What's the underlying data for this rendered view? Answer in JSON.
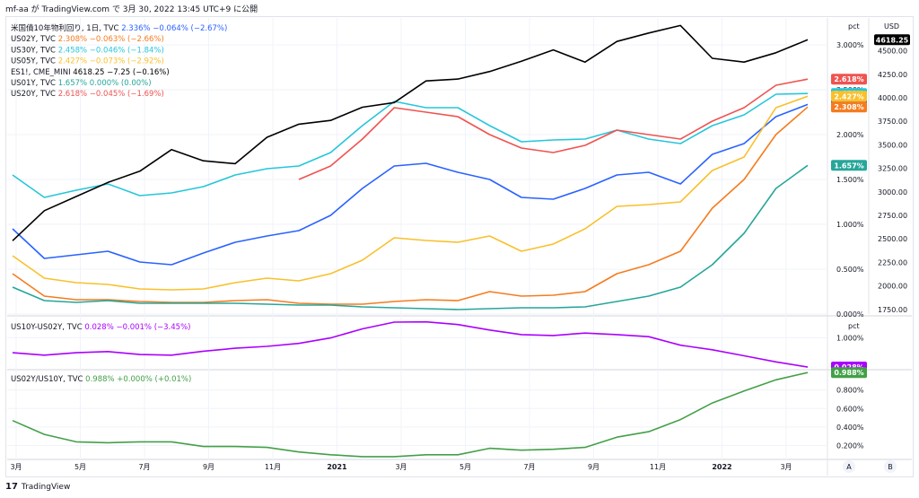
{
  "header": {
    "title": "mf-aa が TradingView.com で 3月 30, 2022 13:45 UTC+9 に公開"
  },
  "footer": {
    "brand": "TradingView",
    "logo": "tradingview-logo-icon"
  },
  "colors": {
    "us10y": "#2962ff",
    "us02y": "#f57c1f",
    "us30y": "#26c6da",
    "us05y": "#f9c02c",
    "es": "#000000",
    "us01y": "#26a69a",
    "us20y": "#ef5350",
    "spread": "#aa00ff",
    "ratio": "#43a047",
    "grid": "#f0f3fa",
    "text": "#131722"
  },
  "main_legend": [
    {
      "label": "米国債10年物利回り, 1日, TVC",
      "values": "2.336%  −0.064%  (−2.67%)",
      "color": "#2962ff"
    },
    {
      "label": "US02Y, TVC",
      "values": "2.308%  −0.063%  (−2.66%)",
      "color": "#f57c1f"
    },
    {
      "label": "US30Y, TVC",
      "values": "2.458%  −0.046%  (−1.84%)",
      "color": "#26c6da"
    },
    {
      "label": "US05Y, TVC",
      "values": "2.427%  −0.073%  (−2.92%)",
      "color": "#f9c02c"
    },
    {
      "label": "ES1!, CME_MINI",
      "values": "4618.25  −7.25  (−0.16%)",
      "color": "#000000"
    },
    {
      "label": "US01Y, TVC",
      "values": "1.657%  0.000%  (0.00%)",
      "color": "#26a69a"
    },
    {
      "label": "US20Y, TVC",
      "values": "2.618%  −0.045%  (−1.69%)",
      "color": "#ef5350"
    }
  ],
  "pane2_legend": {
    "label": "US10Y-US02Y, TVC",
    "values": "0.028%  −0.001%  (−3.45%)",
    "color": "#aa00ff"
  },
  "pane3_legend": {
    "label": "US02Y/US10Y, TVC",
    "values": "0.988%  +0.000%  (+0.01%)",
    "color": "#43a047"
  },
  "x_axis": {
    "ticks": [
      "3月",
      "5月",
      "7月",
      "9月",
      "11月",
      "2021",
      "3月",
      "5月",
      "7月",
      "9月",
      "11月",
      "2022",
      "3月"
    ]
  },
  "axis_badges": {
    "pct_unit": "pct",
    "usd_unit": "USD",
    "button_a": "A",
    "button_b": "B"
  },
  "chart_data": [
    {
      "type": "line",
      "pane": "main",
      "x": [
        "2020-03",
        "2020-04",
        "2020-05",
        "2020-06",
        "2020-07",
        "2020-08",
        "2020-09",
        "2020-10",
        "2020-11",
        "2020-12",
        "2021-01",
        "2021-02",
        "2021-03",
        "2021-04",
        "2021-05",
        "2021-06",
        "2021-07",
        "2021-08",
        "2021-09",
        "2021-10",
        "2021-11",
        "2021-12",
        "2022-01",
        "2022-02",
        "2022-03",
        "2022-03-30"
      ],
      "left_axis": {
        "unit": "pct",
        "ticks": [
          "0.000%",
          "0.500%",
          "1.000%",
          "1.500%",
          "2.000%",
          "2.500%",
          "3.000%"
        ],
        "ylim": [
          0,
          3.3
        ]
      },
      "right_axis": {
        "unit": "USD",
        "ticks": [
          "1750.00",
          "2000.00",
          "2250.00",
          "2500.00",
          "2750.00",
          "3000.00",
          "3250.00",
          "3500.00",
          "3750.00",
          "4000.00",
          "4250.00",
          "4500.00"
        ],
        "ylim": [
          1700,
          4850
        ]
      },
      "series": [
        {
          "name": "米国債10年物利回り, 1日, TVC",
          "axis": "left",
          "last": "2.336%",
          "values": [
            0.95,
            0.62,
            0.66,
            0.7,
            0.58,
            0.55,
            0.68,
            0.8,
            0.87,
            0.93,
            1.1,
            1.4,
            1.65,
            1.68,
            1.58,
            1.5,
            1.3,
            1.28,
            1.4,
            1.55,
            1.58,
            1.45,
            1.78,
            1.9,
            2.2,
            2.336
          ]
        },
        {
          "name": "US02Y, TVC",
          "axis": "left",
          "last": "2.308%",
          "values": [
            0.45,
            0.2,
            0.16,
            0.16,
            0.14,
            0.13,
            0.13,
            0.15,
            0.16,
            0.12,
            0.11,
            0.11,
            0.14,
            0.16,
            0.15,
            0.25,
            0.2,
            0.21,
            0.25,
            0.45,
            0.55,
            0.7,
            1.18,
            1.5,
            2.0,
            2.308
          ]
        },
        {
          "name": "US30Y, TVC",
          "axis": "left",
          "last": "2.458%",
          "values": [
            1.55,
            1.3,
            1.38,
            1.45,
            1.32,
            1.35,
            1.42,
            1.55,
            1.62,
            1.65,
            1.8,
            2.1,
            2.37,
            2.3,
            2.3,
            2.1,
            1.92,
            1.94,
            1.95,
            2.05,
            1.95,
            1.9,
            2.1,
            2.22,
            2.45,
            2.458
          ]
        },
        {
          "name": "US05Y, TVC",
          "axis": "left",
          "last": "2.427%",
          "values": [
            0.65,
            0.4,
            0.35,
            0.33,
            0.28,
            0.27,
            0.28,
            0.35,
            0.4,
            0.37,
            0.45,
            0.6,
            0.85,
            0.82,
            0.8,
            0.87,
            0.7,
            0.78,
            0.95,
            1.2,
            1.22,
            1.25,
            1.6,
            1.75,
            2.3,
            2.427
          ]
        },
        {
          "name": "ES1!, CME_MINI",
          "axis": "right",
          "last": "4618.25",
          "values": [
            2480,
            2800,
            2950,
            3100,
            3220,
            3450,
            3330,
            3300,
            3580,
            3720,
            3760,
            3900,
            3950,
            4180,
            4200,
            4280,
            4390,
            4510,
            4380,
            4600,
            4690,
            4770,
            4420,
            4380,
            4480,
            4618.25
          ]
        },
        {
          "name": "US01Y, TVC",
          "axis": "left",
          "last": "1.657%",
          "values": [
            0.3,
            0.15,
            0.13,
            0.15,
            0.12,
            0.12,
            0.12,
            0.12,
            0.11,
            0.1,
            0.1,
            0.08,
            0.07,
            0.06,
            0.05,
            0.06,
            0.07,
            0.07,
            0.08,
            0.14,
            0.2,
            0.3,
            0.55,
            0.9,
            1.4,
            1.657
          ]
        },
        {
          "name": "US20Y, TVC",
          "axis": "left",
          "last": "2.618%",
          "values": [
            null,
            null,
            null,
            null,
            null,
            null,
            null,
            null,
            null,
            1.5,
            1.65,
            1.95,
            2.3,
            2.25,
            2.2,
            2.0,
            1.85,
            1.8,
            1.88,
            2.05,
            2.0,
            1.95,
            2.15,
            2.3,
            2.55,
            2.618
          ]
        }
      ]
    },
    {
      "type": "line",
      "pane": "spread",
      "left_axis": {
        "unit": "pct",
        "ticks": [
          "1.000%"
        ],
        "ylim": [
          0,
          1.6
        ]
      },
      "series": [
        {
          "name": "US10Y-US02Y, TVC",
          "last": "0.028%",
          "values": [
            0.5,
            0.42,
            0.5,
            0.54,
            0.44,
            0.42,
            0.55,
            0.65,
            0.71,
            0.81,
            0.99,
            1.29,
            1.51,
            1.52,
            1.43,
            1.25,
            1.1,
            1.07,
            1.15,
            1.1,
            1.03,
            0.75,
            0.6,
            0.4,
            0.2,
            0.028
          ]
        }
      ]
    },
    {
      "type": "line",
      "pane": "ratio",
      "left_axis": {
        "unit": "pct",
        "ticks": [
          "0.200%",
          "0.400%",
          "0.600%",
          "0.800%"
        ],
        "ylim": [
          0.05,
          1.0
        ]
      },
      "series": [
        {
          "name": "US02Y/US10Y, TVC",
          "last": "0.988%",
          "values": [
            0.47,
            0.32,
            0.24,
            0.23,
            0.24,
            0.24,
            0.19,
            0.19,
            0.18,
            0.13,
            0.1,
            0.08,
            0.08,
            0.1,
            0.1,
            0.17,
            0.15,
            0.16,
            0.18,
            0.29,
            0.35,
            0.48,
            0.66,
            0.79,
            0.91,
            0.988
          ]
        }
      ]
    }
  ]
}
